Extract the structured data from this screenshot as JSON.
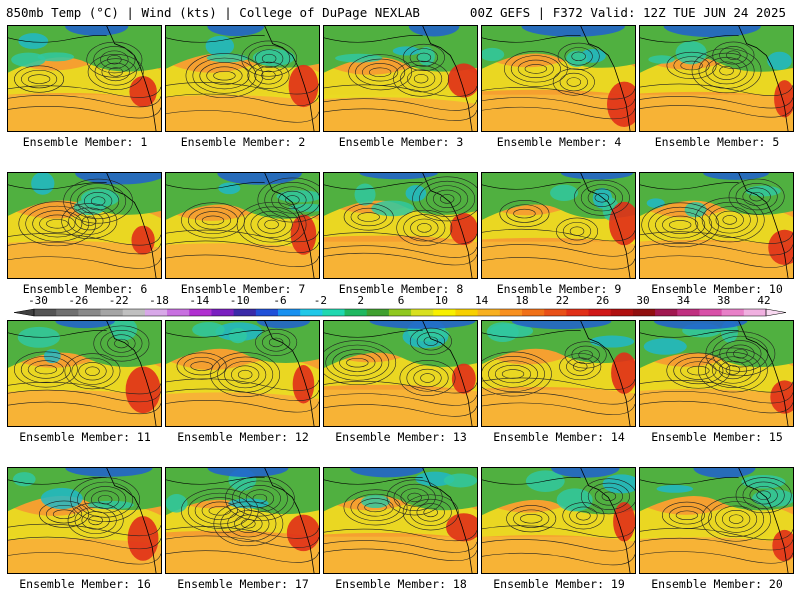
{
  "header": {
    "left": "850mb Temp (°C) | Wind (kts) | College of DuPage NEXLAB",
    "right": "00Z GEFS | F372 Valid: 12Z TUE JUN 24 2025"
  },
  "members": [
    {
      "label": "Ensemble Member: 1"
    },
    {
      "label": "Ensemble Member: 2"
    },
    {
      "label": "Ensemble Member: 3"
    },
    {
      "label": "Ensemble Member: 4"
    },
    {
      "label": "Ensemble Member: 5"
    },
    {
      "label": "Ensemble Member: 6"
    },
    {
      "label": "Ensemble Member: 7"
    },
    {
      "label": "Ensemble Member: 8"
    },
    {
      "label": "Ensemble Member: 9"
    },
    {
      "label": "Ensemble Member: 10"
    },
    {
      "label": "Ensemble Member: 11"
    },
    {
      "label": "Ensemble Member: 12"
    },
    {
      "label": "Ensemble Member: 13"
    },
    {
      "label": "Ensemble Member: 14"
    },
    {
      "label": "Ensemble Member: 15"
    },
    {
      "label": "Ensemble Member: 16"
    },
    {
      "label": "Ensemble Member: 17"
    },
    {
      "label": "Ensemble Member: 18"
    },
    {
      "label": "Ensemble Member: 19"
    },
    {
      "label": "Ensemble Member: 20"
    }
  ],
  "colorbar": {
    "ticks": [
      "-30",
      "-26",
      "-22",
      "-18",
      "-14",
      "-10",
      "-6",
      "-2",
      "2",
      "6",
      "10",
      "14",
      "18",
      "22",
      "26",
      "30",
      "34",
      "38",
      "42"
    ],
    "colors": [
      "#555555",
      "#707070",
      "#8a8a8a",
      "#a5a5a5",
      "#c0c0c0",
      "#d8a8e8",
      "#c870e0",
      "#b030d0",
      "#7a20c0",
      "#3a2aa8",
      "#2050d8",
      "#1890f0",
      "#20c8e8",
      "#20d8b0",
      "#20b860",
      "#40a030",
      "#90c820",
      "#d8e020",
      "#f8f000",
      "#f8d000",
      "#f8b020",
      "#f89020",
      "#f07018",
      "#e85018",
      "#e03018",
      "#d01818",
      "#b01010",
      "#901010",
      "#a01850",
      "#c03080",
      "#d850a8",
      "#e880c8",
      "#f0b0e0"
    ]
  }
}
